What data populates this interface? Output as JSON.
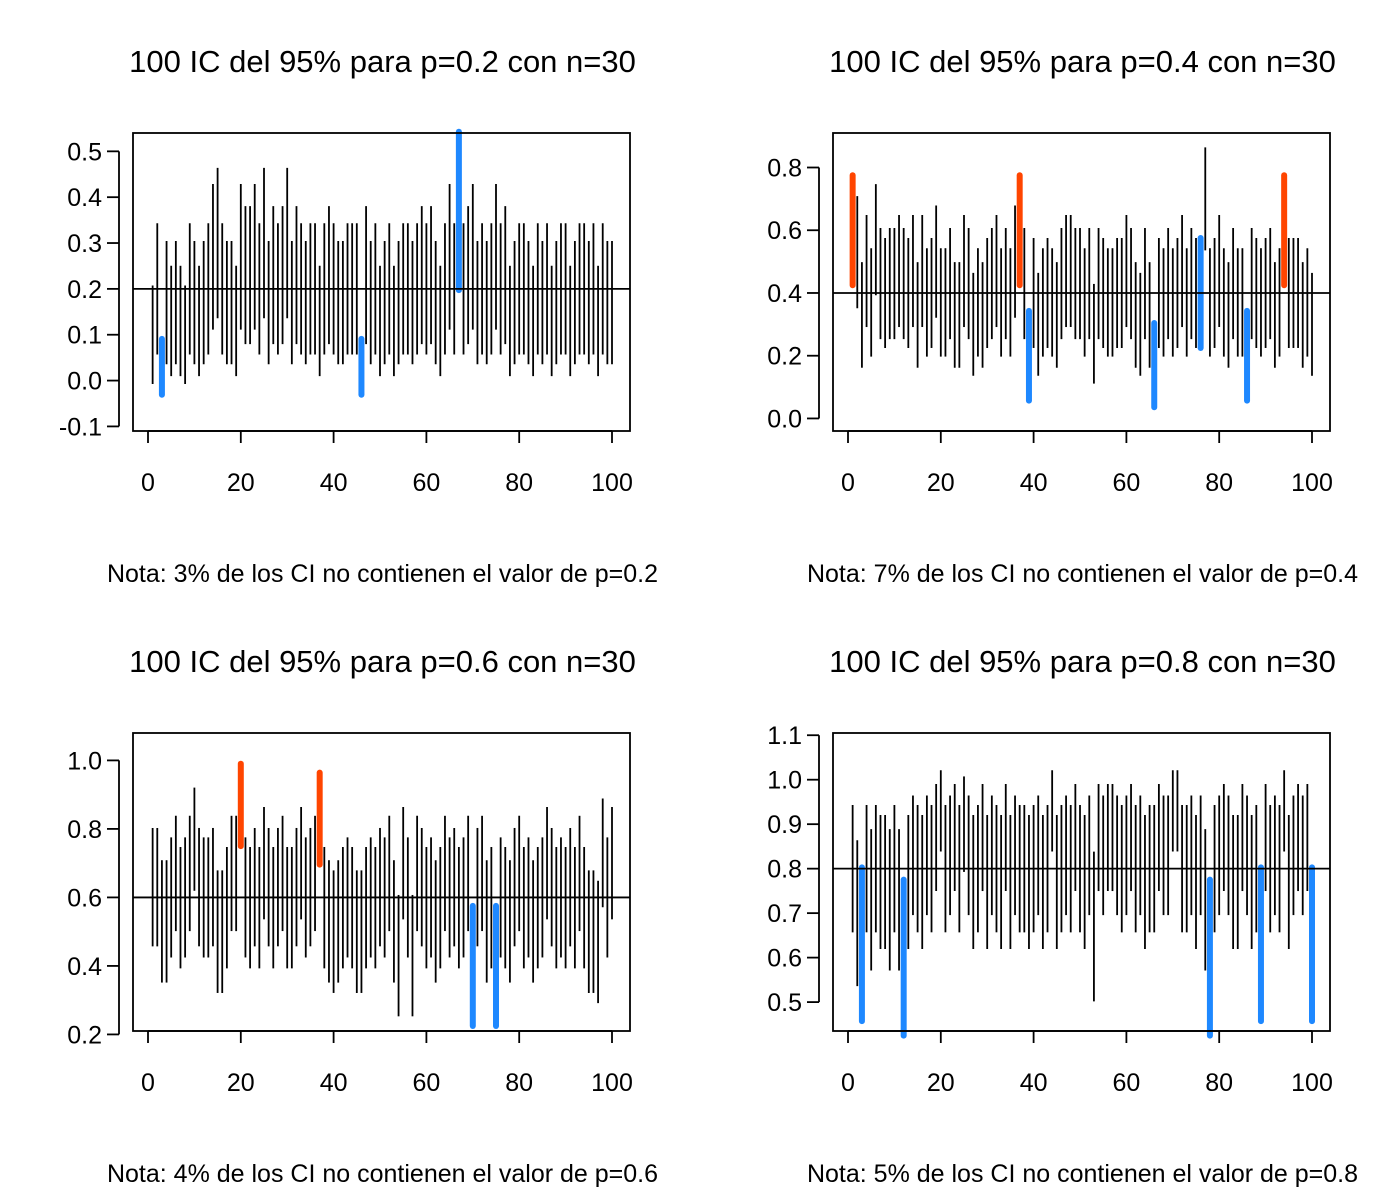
{
  "colors": {
    "normal": "#000000",
    "above": "#FF4500",
    "below": "#1E88FF",
    "background": "#FFFFFF"
  },
  "chart_data": [
    {
      "type": "interval",
      "title": "100 IC del 95% para p=0.2 con n=30",
      "note": "Nota: 3% de los CI no contienen el valor de p=0.2",
      "p": 0.2,
      "xlim": [
        0,
        100
      ],
      "ylim": [
        -0.11,
        0.54
      ],
      "x_ticks": [
        0,
        20,
        40,
        60,
        80,
        100
      ],
      "x_tick_labels": [
        "0",
        "20",
        "40",
        "60",
        "80",
        "100"
      ],
      "y_ticks": [
        -0.1,
        0.0,
        0.1,
        0.2,
        0.3,
        0.4,
        0.5
      ],
      "y_tick_labels": [
        "-0.1",
        "0.0",
        "0.1",
        "0.2",
        "0.3",
        "0.4",
        "0.5"
      ],
      "centers": [
        0.1,
        0.2,
        0.03,
        0.17,
        0.13,
        0.17,
        0.13,
        0.1,
        0.2,
        0.17,
        0.13,
        0.17,
        0.2,
        0.27,
        0.3,
        0.2,
        0.17,
        0.17,
        0.13,
        0.27,
        0.23,
        0.23,
        0.27,
        0.2,
        0.3,
        0.17,
        0.23,
        0.2,
        0.23,
        0.3,
        0.17,
        0.23,
        0.2,
        0.17,
        0.2,
        0.2,
        0.13,
        0.2,
        0.23,
        0.2,
        0.17,
        0.17,
        0.2,
        0.2,
        0.2,
        0.03,
        0.23,
        0.17,
        0.2,
        0.13,
        0.17,
        0.2,
        0.13,
        0.17,
        0.2,
        0.2,
        0.17,
        0.2,
        0.23,
        0.2,
        0.23,
        0.17,
        0.13,
        0.2,
        0.27,
        0.2,
        0.37,
        0.2,
        0.23,
        0.27,
        0.17,
        0.2,
        0.17,
        0.2,
        0.27,
        0.2,
        0.23,
        0.13,
        0.17,
        0.2,
        0.2,
        0.17,
        0.13,
        0.2,
        0.17,
        0.2,
        0.13,
        0.17,
        0.2,
        0.2,
        0.13,
        0.17,
        0.2,
        0.2,
        0.17,
        0.2,
        0.13,
        0.2,
        0.17,
        0.17
      ],
      "highlighted": [
        3,
        46,
        67
      ],
      "outside_pct": 3
    },
    {
      "type": "interval",
      "title": "100 IC del 95% para p=0.4 con n=30",
      "note": "Nota: 7% de los CI no contienen el valor de p=0.4",
      "p": 0.4,
      "xlim": [
        0,
        100
      ],
      "ylim": [
        -0.04,
        0.91
      ],
      "x_ticks": [
        0,
        20,
        40,
        60,
        80,
        100
      ],
      "x_tick_labels": [
        "0",
        "20",
        "40",
        "60",
        "80",
        "100"
      ],
      "y_ticks": [
        0.0,
        0.2,
        0.4,
        0.6,
        0.8
      ],
      "y_tick_labels": [
        "0.0",
        "0.2",
        "0.4",
        "0.6",
        "0.8"
      ],
      "centers": [
        0.6,
        0.53,
        0.33,
        0.47,
        0.37,
        0.57,
        0.43,
        0.4,
        0.43,
        0.43,
        0.47,
        0.43,
        0.4,
        0.47,
        0.33,
        0.47,
        0.37,
        0.4,
        0.5,
        0.37,
        0.37,
        0.43,
        0.33,
        0.33,
        0.47,
        0.43,
        0.3,
        0.37,
        0.33,
        0.4,
        0.43,
        0.47,
        0.37,
        0.43,
        0.37,
        0.5,
        0.6,
        0.43,
        0.2,
        0.4,
        0.3,
        0.37,
        0.4,
        0.37,
        0.33,
        0.43,
        0.47,
        0.47,
        0.43,
        0.43,
        0.37,
        0.43,
        0.27,
        0.43,
        0.4,
        0.37,
        0.37,
        0.4,
        0.4,
        0.47,
        0.43,
        0.33,
        0.3,
        0.43,
        0.33,
        0.17,
        0.4,
        0.37,
        0.43,
        0.37,
        0.4,
        0.47,
        0.37,
        0.43,
        0.4,
        0.4,
        0.7,
        0.37,
        0.4,
        0.47,
        0.37,
        0.33,
        0.43,
        0.37,
        0.37,
        0.2,
        0.43,
        0.4,
        0.37,
        0.4,
        0.43,
        0.33,
        0.37,
        0.6,
        0.4,
        0.4,
        0.4,
        0.33,
        0.37,
        0.3
      ],
      "highlighted": [
        1,
        37,
        39,
        66,
        76,
        86,
        94
      ],
      "outside_pct": 7
    },
    {
      "type": "interval",
      "title": "100 IC del 95% para p=0.6 con n=30",
      "note": "Nota: 4% de los CI no contienen el valor de p=0.6",
      "p": 0.6,
      "xlim": [
        0,
        100
      ],
      "ylim": [
        0.21,
        1.08
      ],
      "x_ticks": [
        0,
        20,
        40,
        60,
        80,
        100
      ],
      "x_tick_labels": [
        "0",
        "20",
        "40",
        "60",
        "80",
        "100"
      ],
      "y_ticks": [
        0.2,
        0.4,
        0.6,
        0.8,
        1.0
      ],
      "y_tick_labels": [
        "0.2",
        "0.4",
        "0.6",
        "0.8",
        "1.0"
      ],
      "centers": [
        0.63,
        0.63,
        0.53,
        0.53,
        0.6,
        0.67,
        0.57,
        0.6,
        0.67,
        0.77,
        0.63,
        0.6,
        0.6,
        0.63,
        0.5,
        0.5,
        0.57,
        0.67,
        0.67,
        0.87,
        0.6,
        0.57,
        0.63,
        0.57,
        0.7,
        0.63,
        0.57,
        0.63,
        0.67,
        0.57,
        0.57,
        0.63,
        0.7,
        0.6,
        0.63,
        0.67,
        0.83,
        0.57,
        0.53,
        0.5,
        0.53,
        0.57,
        0.6,
        0.57,
        0.5,
        0.5,
        0.57,
        0.6,
        0.57,
        0.63,
        0.6,
        0.67,
        0.53,
        0.43,
        0.7,
        0.6,
        0.43,
        0.67,
        0.63,
        0.57,
        0.6,
        0.53,
        0.57,
        0.67,
        0.6,
        0.63,
        0.57,
        0.6,
        0.67,
        0.4,
        0.63,
        0.67,
        0.53,
        0.57,
        0.4,
        0.6,
        0.57,
        0.53,
        0.63,
        0.67,
        0.57,
        0.6,
        0.53,
        0.57,
        0.6,
        0.7,
        0.63,
        0.57,
        0.6,
        0.57,
        0.63,
        0.57,
        0.67,
        0.57,
        0.5,
        0.5,
        0.47,
        0.73,
        0.6,
        0.7
      ],
      "highlighted": [
        20,
        37,
        70,
        75
      ],
      "outside_pct": 4
    },
    {
      "type": "interval",
      "title": "100 IC del 95% para p=0.8 con n=30",
      "note": "Nota: 5% de los CI no contienen el valor de p=0.8",
      "p": 0.8,
      "xlim": [
        0,
        100
      ],
      "ylim": [
        0.435,
        1.105
      ],
      "x_ticks": [
        0,
        20,
        40,
        60,
        80,
        100
      ],
      "x_tick_labels": [
        "0",
        "20",
        "40",
        "60",
        "80",
        "100"
      ],
      "y_ticks": [
        0.5,
        0.6,
        0.7,
        0.8,
        0.9,
        1.0,
        1.1
      ],
      "y_tick_labels": [
        "0.5",
        "0.6",
        "0.7",
        "0.8",
        "0.9",
        "1.0",
        "1.1"
      ],
      "centers": [
        0.8,
        0.7,
        0.63,
        0.8,
        0.73,
        0.8,
        0.77,
        0.77,
        0.73,
        0.8,
        0.73,
        0.6,
        0.77,
        0.83,
        0.8,
        0.77,
        0.83,
        0.8,
        0.87,
        0.93,
        0.8,
        0.83,
        0.87,
        0.8,
        0.9,
        0.83,
        0.77,
        0.8,
        0.87,
        0.77,
        0.83,
        0.8,
        0.77,
        0.87,
        0.77,
        0.83,
        0.8,
        0.8,
        0.77,
        0.8,
        0.83,
        0.77,
        0.8,
        0.93,
        0.77,
        0.8,
        0.83,
        0.8,
        0.87,
        0.8,
        0.77,
        0.83,
        0.67,
        0.87,
        0.83,
        0.87,
        0.87,
        0.83,
        0.8,
        0.83,
        0.87,
        0.8,
        0.83,
        0.77,
        0.8,
        0.8,
        0.87,
        0.83,
        0.83,
        0.93,
        0.93,
        0.8,
        0.8,
        0.83,
        0.77,
        0.83,
        0.73,
        0.6,
        0.8,
        0.83,
        0.87,
        0.83,
        0.77,
        0.77,
        0.87,
        0.83,
        0.77,
        0.8,
        0.63,
        0.87,
        0.8,
        0.83,
        0.8,
        0.93,
        0.77,
        0.83,
        0.87,
        0.83,
        0.87,
        0.63
      ],
      "highlighted": [
        3,
        12,
        78,
        89,
        100
      ],
      "outside_pct": 5
    }
  ]
}
